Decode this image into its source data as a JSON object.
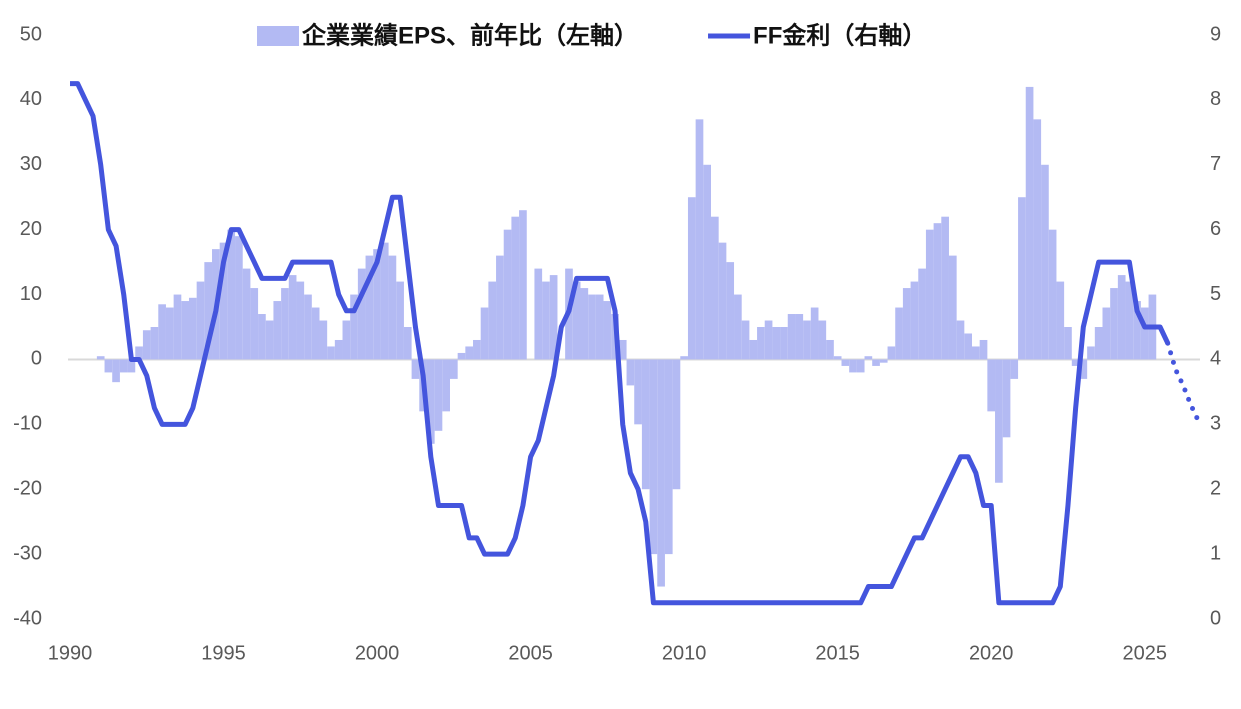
{
  "chart_data": {
    "type": "bar-line",
    "xlim": [
      1990,
      2026.8
    ],
    "xticks": [
      1990,
      1995,
      2000,
      2005,
      2010,
      2015,
      2020,
      2025
    ],
    "ylim": [
      -40,
      50
    ],
    "yticks": [
      -40,
      -30,
      -20,
      -10,
      0,
      10,
      20,
      30,
      40,
      50
    ],
    "y2lim": [
      0,
      9
    ],
    "y2ticks": [
      0,
      1,
      2,
      3,
      4,
      5,
      6,
      7,
      8,
      9
    ],
    "series": [
      {
        "name": "企業業績EPS、前年比（左軸）",
        "type": "bar",
        "color": "#b3baf3",
        "x": [
          1991.0,
          1991.25,
          1991.5,
          1991.75,
          1992.0,
          1992.25,
          1992.5,
          1992.75,
          1993.0,
          1993.25,
          1993.5,
          1993.75,
          1994.0,
          1994.25,
          1994.5,
          1994.75,
          1995.0,
          1995.25,
          1995.5,
          1995.75,
          1996.0,
          1996.25,
          1996.5,
          1996.75,
          1997.0,
          1997.25,
          1997.5,
          1997.75,
          1998.0,
          1998.25,
          1998.5,
          1998.75,
          1999.0,
          1999.25,
          1999.5,
          1999.75,
          2000.0,
          2000.25,
          2000.5,
          2000.75,
          2001.0,
          2001.25,
          2001.5,
          2001.75,
          2002.0,
          2002.25,
          2002.5,
          2002.75,
          2003.0,
          2003.25,
          2003.5,
          2003.75,
          2004.0,
          2004.25,
          2004.5,
          2004.75,
          2005.0,
          2005.25,
          2005.5,
          2005.75,
          2006.0,
          2006.25,
          2006.5,
          2006.75,
          2007.0,
          2007.25,
          2007.5,
          2007.75,
          2008.0,
          2008.25,
          2008.5,
          2008.75,
          2009.0,
          2009.25,
          2009.5,
          2009.75,
          2010.0,
          2010.25,
          2010.5,
          2010.75,
          2011.0,
          2011.25,
          2011.5,
          2011.75,
          2012.0,
          2012.25,
          2012.5,
          2012.75,
          2013.0,
          2013.25,
          2013.5,
          2013.75,
          2014.0,
          2014.25,
          2014.5,
          2014.75,
          2015.0,
          2015.25,
          2015.5,
          2015.75,
          2016.0,
          2016.25,
          2016.5,
          2016.75,
          2017.0,
          2017.25,
          2017.5,
          2017.75,
          2018.0,
          2018.25,
          2018.5,
          2018.75,
          2019.0,
          2019.25,
          2019.5,
          2019.75,
          2020.0,
          2020.25,
          2020.5,
          2020.75,
          2021.0,
          2021.25,
          2021.5,
          2021.75,
          2022.0,
          2022.25,
          2022.5,
          2022.75,
          2023.0,
          2023.25,
          2023.5,
          2023.75,
          2024.0,
          2024.25,
          2024.5,
          2024.75,
          2025.0,
          2025.25
        ],
        "values": [
          0.5,
          -2,
          -3.5,
          -2,
          -2,
          2,
          4.5,
          5,
          8.5,
          8,
          10,
          9,
          9.5,
          12,
          15,
          17,
          18,
          20,
          19,
          14,
          11,
          7,
          6,
          9,
          11,
          13,
          12,
          10,
          8,
          6,
          2,
          3,
          6,
          10,
          14,
          16,
          17,
          18,
          16,
          12,
          5,
          -3,
          -8,
          -13,
          -11,
          -8,
          -3,
          1,
          2,
          3,
          8,
          12,
          16,
          20,
          22,
          23,
          null,
          14,
          12,
          13,
          null,
          14,
          12,
          11,
          10,
          10,
          9,
          7,
          3,
          -4,
          -10,
          -20,
          -30,
          -35,
          -30,
          -20,
          0.5,
          25,
          37,
          30,
          22,
          18,
          15,
          10,
          6,
          3,
          5,
          6,
          5,
          5,
          7,
          7,
          6,
          8,
          6,
          3,
          0.5,
          -1,
          -2,
          -2,
          0.5,
          -1,
          -0.5,
          2,
          8,
          11,
          12,
          14,
          20,
          21,
          22,
          16,
          6,
          4,
          2,
          3,
          -8,
          -19,
          -12,
          -3,
          25,
          42,
          37,
          30,
          20,
          12,
          5,
          -1,
          -3,
          2,
          5,
          8,
          11,
          13,
          12,
          9,
          8,
          10
        ]
      },
      {
        "name": "FF金利（右軸）",
        "type": "line",
        "axis": "y2",
        "color": "#4455dd",
        "x": [
          1990.0,
          1990.25,
          1990.5,
          1990.75,
          1991.0,
          1991.25,
          1991.5,
          1991.75,
          1992.0,
          1992.25,
          1992.5,
          1992.75,
          1993.0,
          1993.25,
          1993.5,
          1993.75,
          1994.0,
          1994.25,
          1994.5,
          1994.75,
          1995.0,
          1995.25,
          1995.5,
          1995.75,
          1996.0,
          1996.25,
          1996.5,
          1996.75,
          1997.0,
          1997.25,
          1997.5,
          1997.75,
          1998.0,
          1998.25,
          1998.5,
          1998.75,
          1999.0,
          1999.25,
          1999.5,
          1999.75,
          2000.0,
          2000.25,
          2000.5,
          2000.75,
          2001.0,
          2001.25,
          2001.5,
          2001.75,
          2002.0,
          2002.25,
          2002.5,
          2002.75,
          2003.0,
          2003.25,
          2003.5,
          2003.75,
          2004.0,
          2004.25,
          2004.5,
          2004.75,
          2005.0,
          2005.25,
          2005.5,
          2005.75,
          2006.0,
          2006.25,
          2006.5,
          2006.75,
          2007.0,
          2007.25,
          2007.5,
          2007.75,
          2008.0,
          2008.25,
          2008.5,
          2008.75,
          2009.0,
          2009.5,
          2010.0,
          2011.0,
          2012.0,
          2013.0,
          2014.0,
          2015.0,
          2015.75,
          2016.0,
          2016.75,
          2017.0,
          2017.25,
          2017.5,
          2017.75,
          2018.0,
          2018.25,
          2018.5,
          2018.75,
          2019.0,
          2019.25,
          2019.5,
          2019.75,
          2020.0,
          2020.25,
          2021.0,
          2021.75,
          2022.0,
          2022.25,
          2022.5,
          2022.75,
          2023.0,
          2023.25,
          2023.5,
          2024.0,
          2024.5,
          2024.75,
          2025.0,
          2025.25,
          2025.5,
          2025.75
        ],
        "values": [
          8.25,
          8.25,
          8.0,
          7.75,
          7.0,
          6.0,
          5.75,
          5.0,
          4.0,
          4.0,
          3.75,
          3.25,
          3.0,
          3.0,
          3.0,
          3.0,
          3.25,
          3.75,
          4.25,
          4.75,
          5.5,
          6.0,
          6.0,
          5.75,
          5.5,
          5.25,
          5.25,
          5.25,
          5.25,
          5.5,
          5.5,
          5.5,
          5.5,
          5.5,
          5.5,
          5.0,
          4.75,
          4.75,
          5.0,
          5.25,
          5.5,
          6.0,
          6.5,
          6.5,
          5.5,
          4.5,
          3.75,
          2.5,
          1.75,
          1.75,
          1.75,
          1.75,
          1.25,
          1.25,
          1.0,
          1.0,
          1.0,
          1.0,
          1.25,
          1.75,
          2.5,
          2.75,
          3.25,
          3.75,
          4.5,
          4.75,
          5.25,
          5.25,
          5.25,
          5.25,
          5.25,
          4.75,
          3.0,
          2.25,
          2.0,
          1.5,
          0.25,
          0.25,
          0.25,
          0.25,
          0.25,
          0.25,
          0.25,
          0.25,
          0.25,
          0.5,
          0.5,
          0.75,
          1.0,
          1.25,
          1.25,
          1.5,
          1.75,
          2.0,
          2.25,
          2.5,
          2.5,
          2.25,
          1.75,
          1.75,
          0.25,
          0.25,
          0.25,
          0.25,
          0.5,
          1.75,
          3.25,
          4.5,
          5.0,
          5.5,
          5.5,
          5.5,
          4.75,
          4.5,
          4.5,
          4.5,
          4.25
        ]
      },
      {
        "type": "line",
        "axis": "y2",
        "color": "#4455dd",
        "style": "dotted",
        "x": [
          2025.75,
          2026.0,
          2026.25,
          2026.5,
          2026.75
        ],
        "values": [
          4.25,
          3.85,
          3.6,
          3.3,
          3.05
        ]
      }
    ]
  }
}
